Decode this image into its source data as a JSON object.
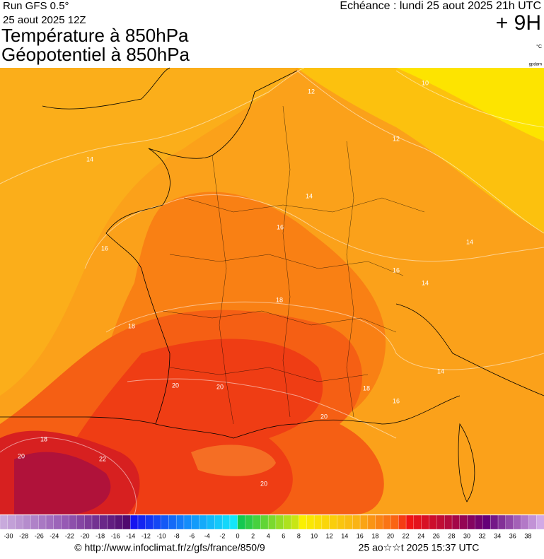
{
  "header": {
    "run": "Run GFS 0.5°",
    "date": "25 aout 2025 12Z",
    "title_1": "Température à 850hPa",
    "title_2": "Géopotentiel à 850hPa",
    "echeance": "Echéance : lundi 25 aout 2025 21h UTC",
    "lead": "+ 9H",
    "unit": "°C",
    "credit": "gpdam"
  },
  "map": {
    "contour_labels": [
      12,
      10,
      12,
      14,
      14,
      16,
      16,
      14,
      16,
      14,
      18,
      18,
      14,
      20,
      20,
      18,
      16,
      20,
      18,
      20,
      22,
      20
    ]
  },
  "legend": {
    "labels": [
      -30,
      -28,
      -26,
      -24,
      -22,
      -20,
      -18,
      -16,
      -14,
      -12,
      -10,
      -8,
      -6,
      -4,
      -2,
      0,
      2,
      4,
      6,
      8,
      10,
      12,
      14,
      16,
      18,
      20,
      22,
      24,
      26,
      28,
      30,
      32,
      34,
      36,
      38
    ]
  },
  "footer": {
    "url": "© http://www.infoclimat.fr/z/gfs/france/850/9",
    "timestamp": "25 ao☆☆t 2025 15:37 UTC"
  }
}
